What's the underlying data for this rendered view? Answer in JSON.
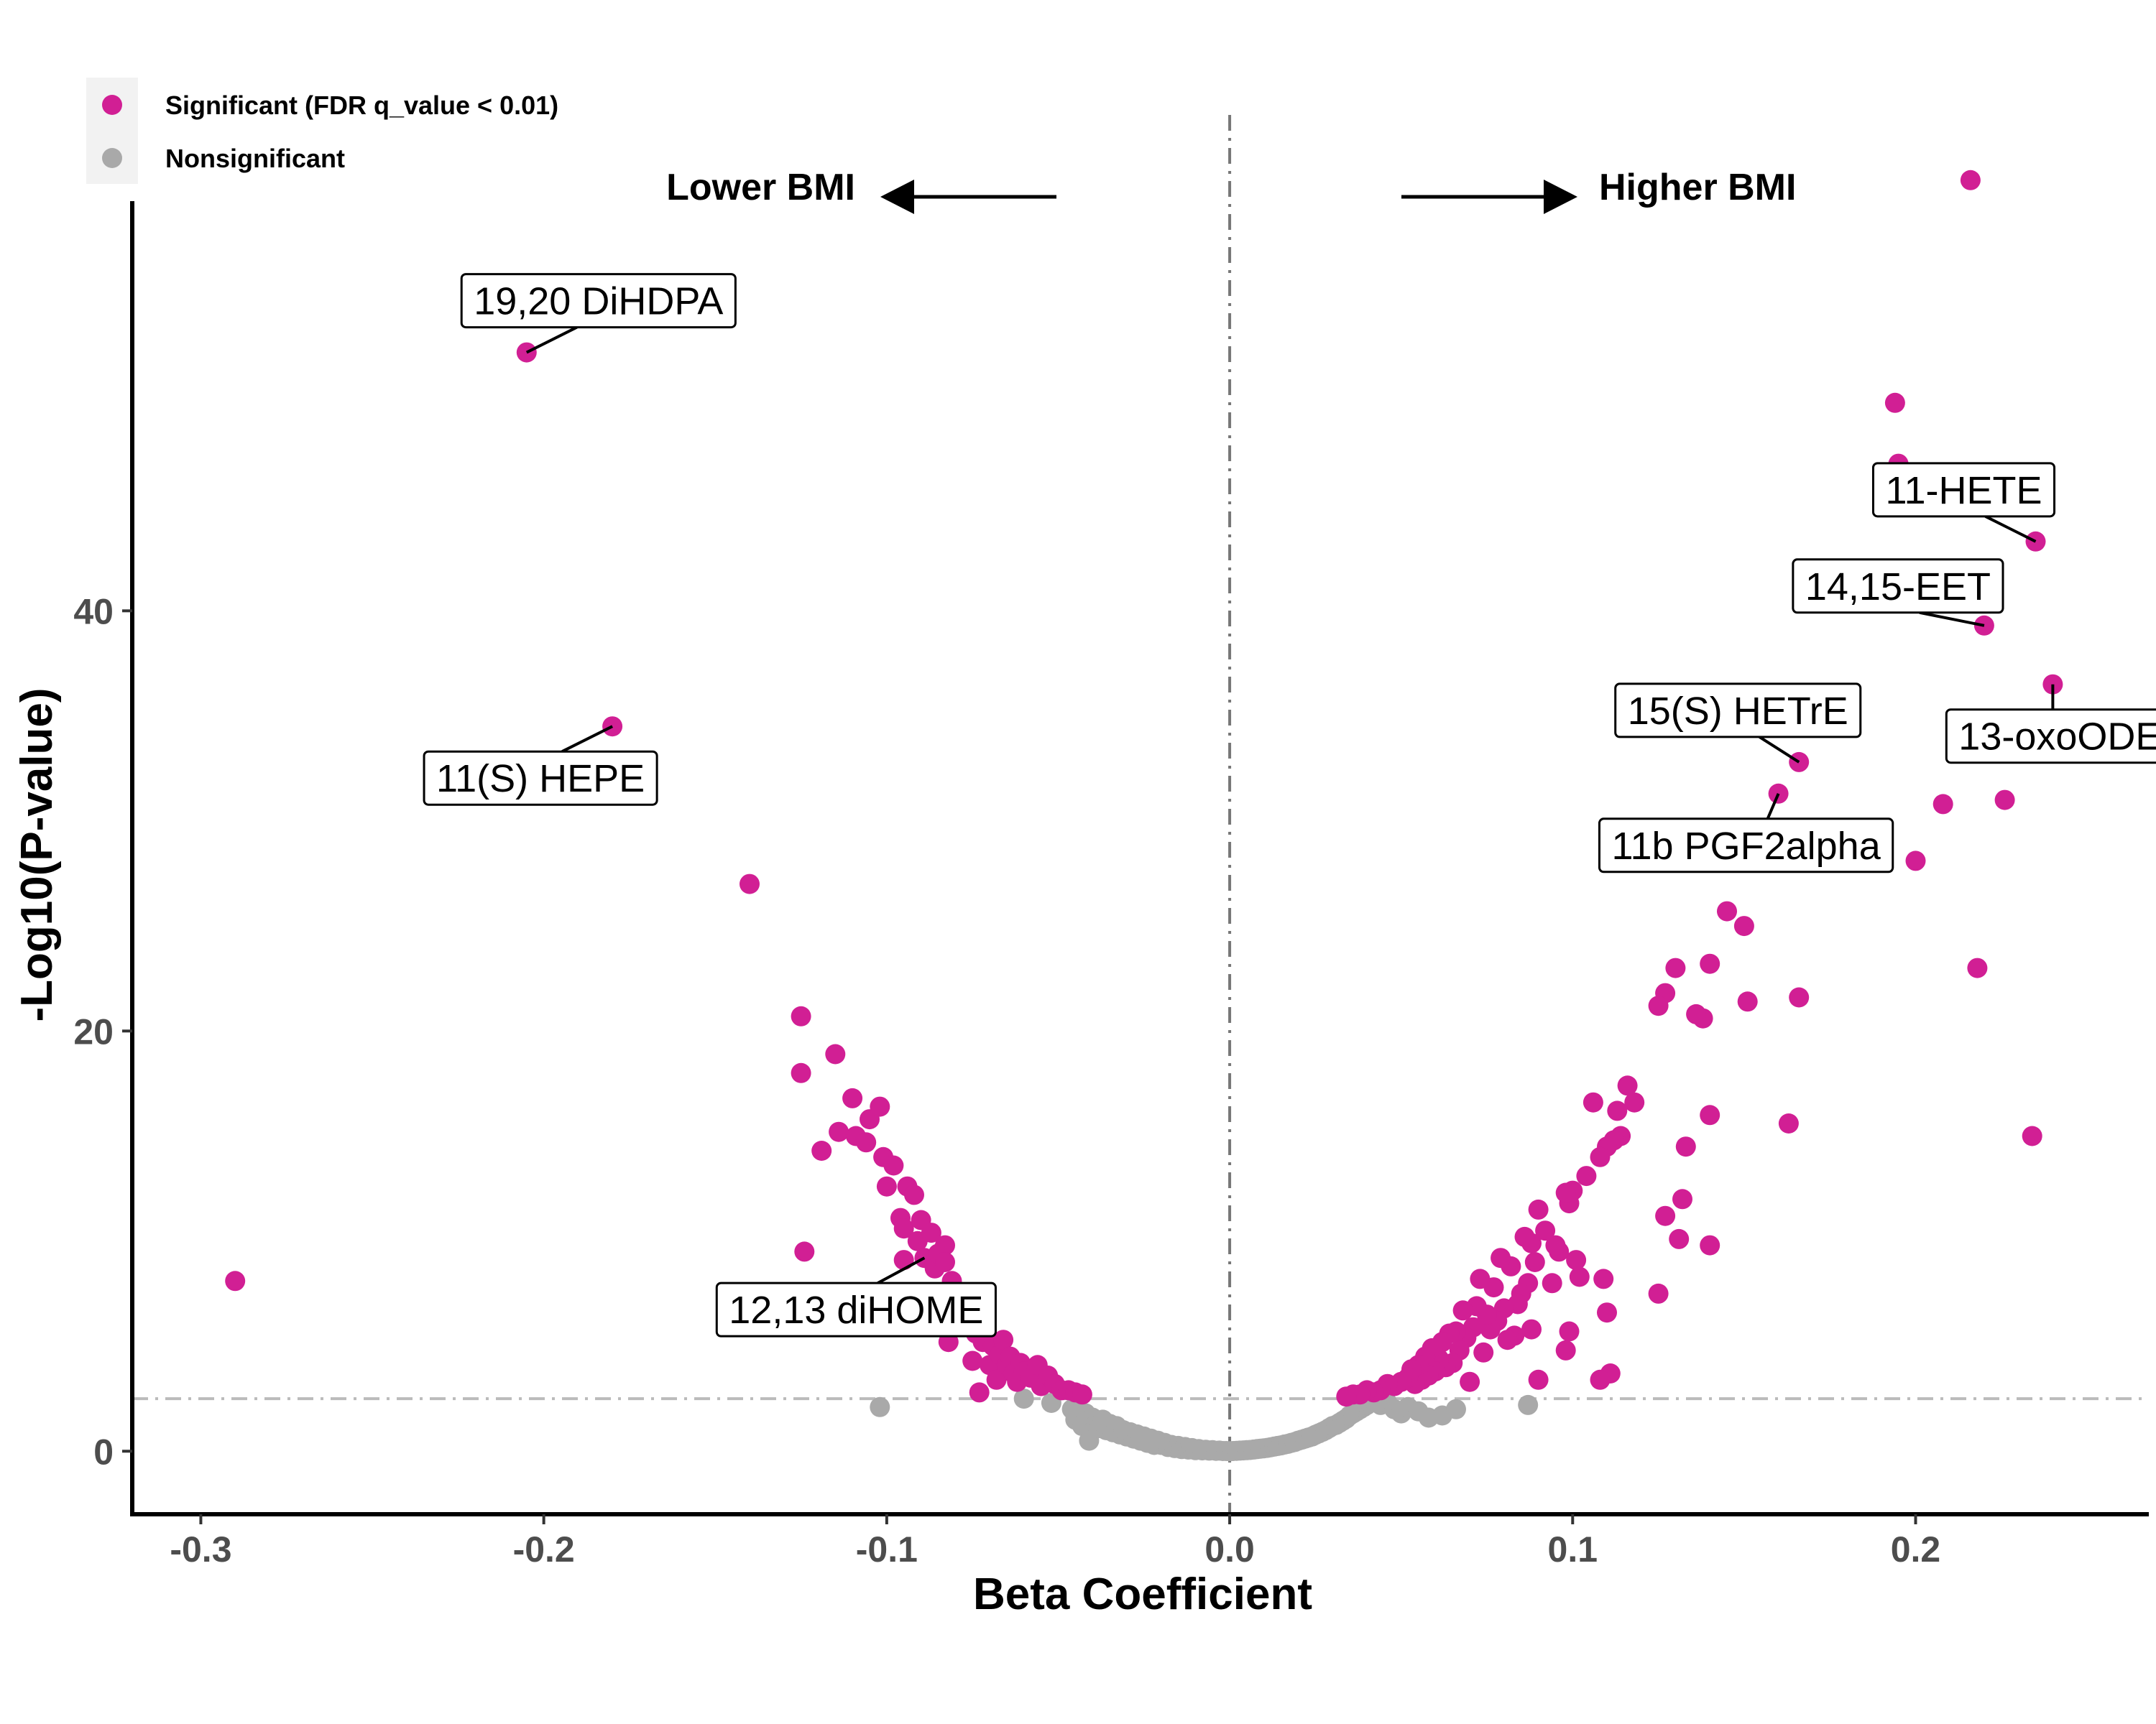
{
  "colors": {
    "significant": "#D11F94",
    "nonsignificant": "#A9A9A9",
    "threshold": "#BBBBBB",
    "zero_line": "#777777",
    "axis": "#000000",
    "legend_bg": "#F2F2F2"
  },
  "legend": {
    "items": [
      {
        "label": "Significant (FDR q_value < 0.01)",
        "color_key": "significant"
      },
      {
        "label": "Nonsignificant",
        "color_key": "nonsignificant"
      }
    ]
  },
  "direction": {
    "left": "Lower BMI",
    "right": "Higher BMI"
  },
  "chart_data": {
    "type": "scatter",
    "title": "",
    "xlabel": "Beta Coefficient",
    "ylabel": "-Log10(P-value)",
    "xlim": [
      -0.32,
      0.268
    ],
    "ylim": [
      -3,
      59.5
    ],
    "xticks": [
      -0.3,
      -0.2,
      -0.1,
      0.0,
      0.1,
      0.2
    ],
    "xtick_labels": [
      "-0.3",
      "-0.2",
      "-0.1",
      "0.0",
      "0.1",
      "0.2"
    ],
    "yticks": [
      0,
      20,
      40
    ],
    "ytick_labels": [
      "0",
      "20",
      "40"
    ],
    "threshold_y": 2.5,
    "zero_x": 0.0,
    "series": [
      {
        "name": "Significant (FDR q_value < 0.01)",
        "color_key": "significant",
        "points": [
          [
            -0.29,
            8.1
          ],
          [
            -0.205,
            52.3
          ],
          [
            -0.18,
            34.5
          ],
          [
            -0.14,
            27.0
          ],
          [
            -0.125,
            20.7
          ],
          [
            -0.125,
            18.0
          ],
          [
            -0.124,
            9.5
          ],
          [
            -0.119,
            14.3
          ],
          [
            -0.115,
            18.9
          ],
          [
            -0.114,
            15.2
          ],
          [
            -0.11,
            16.8
          ],
          [
            -0.109,
            15.0
          ],
          [
            -0.106,
            14.7
          ],
          [
            -0.105,
            15.8
          ],
          [
            -0.102,
            16.4
          ],
          [
            -0.101,
            14.0
          ],
          [
            -0.1,
            12.6
          ],
          [
            -0.098,
            13.6
          ],
          [
            -0.096,
            11.1
          ],
          [
            -0.095,
            10.6
          ],
          [
            -0.095,
            9.1
          ],
          [
            -0.094,
            12.6
          ],
          [
            -0.092,
            12.2
          ],
          [
            -0.091,
            10.0
          ],
          [
            -0.09,
            11.0
          ],
          [
            -0.089,
            9.2
          ],
          [
            -0.087,
            10.4
          ],
          [
            -0.086,
            8.7
          ],
          [
            -0.085,
            9.4
          ],
          [
            -0.084,
            7.1
          ],
          [
            -0.083,
            9.8
          ],
          [
            -0.083,
            9.0
          ],
          [
            -0.082,
            5.2
          ],
          [
            -0.081,
            8.1
          ],
          [
            -0.08,
            7.4
          ],
          [
            -0.079,
            6.6
          ],
          [
            -0.078,
            7.3
          ],
          [
            -0.077,
            6.0
          ],
          [
            -0.076,
            6.9
          ],
          [
            -0.075,
            4.3
          ],
          [
            -0.074,
            5.6
          ],
          [
            -0.073,
            2.8
          ],
          [
            -0.072,
            5.2
          ],
          [
            -0.07,
            4.1
          ],
          [
            -0.069,
            5.0
          ],
          [
            -0.068,
            3.4
          ],
          [
            -0.067,
            4.6
          ],
          [
            -0.066,
            5.3
          ],
          [
            -0.065,
            4.1
          ],
          [
            -0.064,
            4.5
          ],
          [
            -0.063,
            3.7
          ],
          [
            -0.062,
            3.3
          ],
          [
            -0.061,
            4.2
          ],
          [
            -0.06,
            3.8
          ],
          [
            -0.058,
            3.5
          ],
          [
            -0.056,
            4.1
          ],
          [
            -0.055,
            3.1
          ],
          [
            -0.053,
            3.6
          ],
          [
            -0.051,
            3.2
          ],
          [
            -0.049,
            2.9
          ],
          [
            -0.047,
            2.9
          ],
          [
            -0.045,
            2.8
          ],
          [
            -0.043,
            2.7
          ],
          [
            0.24,
            36.5
          ],
          [
            0.235,
            43.3
          ],
          [
            0.234,
            15.0
          ],
          [
            0.226,
            31.0
          ],
          [
            0.22,
            39.3
          ],
          [
            0.218,
            23.0
          ],
          [
            0.216,
            60.5
          ],
          [
            0.208,
            30.8
          ],
          [
            0.2,
            28.1
          ],
          [
            0.195,
            47.0
          ],
          [
            0.194,
            49.9
          ],
          [
            0.166,
            32.8
          ],
          [
            0.166,
            21.6
          ],
          [
            0.163,
            15.6
          ],
          [
            0.16,
            31.3
          ],
          [
            0.151,
            21.4
          ],
          [
            0.15,
            25.0
          ],
          [
            0.145,
            25.7
          ],
          [
            0.14,
            23.2
          ],
          [
            0.14,
            16.0
          ],
          [
            0.14,
            9.8
          ],
          [
            0.138,
            20.6
          ],
          [
            0.136,
            20.8
          ],
          [
            0.133,
            14.5
          ],
          [
            0.132,
            12.0
          ],
          [
            0.131,
            10.1
          ],
          [
            0.13,
            23.0
          ],
          [
            0.127,
            21.8
          ],
          [
            0.127,
            11.2
          ],
          [
            0.125,
            21.2
          ],
          [
            0.125,
            7.5
          ],
          [
            0.118,
            16.6
          ],
          [
            0.116,
            17.4
          ],
          [
            0.114,
            15.0
          ],
          [
            0.113,
            16.2
          ],
          [
            0.112,
            14.8
          ],
          [
            0.111,
            3.7
          ],
          [
            0.11,
            14.5
          ],
          [
            0.11,
            6.6
          ],
          [
            0.109,
            8.2
          ],
          [
            0.108,
            14.0
          ],
          [
            0.108,
            3.4
          ],
          [
            0.106,
            16.6
          ],
          [
            0.104,
            13.1
          ],
          [
            0.102,
            8.3
          ],
          [
            0.101,
            9.1
          ],
          [
            0.1,
            12.4
          ],
          [
            0.099,
            11.8
          ],
          [
            0.099,
            5.7
          ],
          [
            0.098,
            12.3
          ],
          [
            0.098,
            4.8
          ],
          [
            0.096,
            9.5
          ],
          [
            0.095,
            9.8
          ],
          [
            0.094,
            8.0
          ],
          [
            0.092,
            10.5
          ],
          [
            0.09,
            11.5
          ],
          [
            0.09,
            3.4
          ],
          [
            0.089,
            9.0
          ],
          [
            0.088,
            9.9
          ],
          [
            0.088,
            5.8
          ],
          [
            0.087,
            8.0
          ],
          [
            0.086,
            10.2
          ],
          [
            0.085,
            7.5
          ],
          [
            0.084,
            7.0
          ],
          [
            0.083,
            5.5
          ],
          [
            0.082,
            8.8
          ],
          [
            0.081,
            5.3
          ],
          [
            0.08,
            6.8
          ],
          [
            0.079,
            9.2
          ],
          [
            0.078,
            6.2
          ],
          [
            0.077,
            7.8
          ],
          [
            0.076,
            5.8
          ],
          [
            0.075,
            6.5
          ],
          [
            0.074,
            4.7
          ],
          [
            0.073,
            8.2
          ],
          [
            0.072,
            6.9
          ],
          [
            0.071,
            5.9
          ],
          [
            0.07,
            3.3
          ],
          [
            0.069,
            5.4
          ],
          [
            0.068,
            6.7
          ],
          [
            0.067,
            4.8
          ],
          [
            0.066,
            5.7
          ],
          [
            0.065,
            4.2
          ],
          [
            0.064,
            5.6
          ],
          [
            0.063,
            4.0
          ],
          [
            0.062,
            5.2
          ],
          [
            0.061,
            4.4
          ],
          [
            0.06,
            3.8
          ],
          [
            0.059,
            4.9
          ],
          [
            0.058,
            3.6
          ],
          [
            0.057,
            4.5
          ],
          [
            0.056,
            3.4
          ],
          [
            0.055,
            4.1
          ],
          [
            0.054,
            3.2
          ],
          [
            0.053,
            3.9
          ],
          [
            0.052,
            3.5
          ],
          [
            0.05,
            3.3
          ],
          [
            0.048,
            3.1
          ],
          [
            0.046,
            3.2
          ],
          [
            0.044,
            2.9
          ],
          [
            0.042,
            2.8
          ],
          [
            0.04,
            2.9
          ],
          [
            0.038,
            2.7
          ],
          [
            0.036,
            2.7
          ],
          [
            0.034,
            2.6
          ]
        ]
      },
      {
        "name": "Nonsignificant",
        "color_key": "nonsignificant",
        "points": [
          [
            -0.102,
            2.1
          ],
          [
            -0.06,
            2.5
          ],
          [
            -0.052,
            2.3
          ],
          [
            -0.046,
            2.0
          ],
          [
            -0.045,
            1.5
          ],
          [
            -0.044,
            1.9
          ],
          [
            -0.043,
            1.2
          ],
          [
            -0.042,
            1.8
          ],
          [
            -0.041,
            0.5
          ],
          [
            -0.04,
            1.6
          ],
          [
            -0.039,
            1.3
          ],
          [
            -0.038,
            1.1
          ],
          [
            -0.037,
            1.5
          ],
          [
            -0.036,
            1.0
          ],
          [
            -0.035,
            1.3
          ],
          [
            -0.034,
            0.9
          ],
          [
            -0.033,
            1.2
          ],
          [
            -0.032,
            0.8
          ],
          [
            -0.031,
            1.0
          ],
          [
            -0.03,
            0.7
          ],
          [
            -0.029,
            0.9
          ],
          [
            -0.028,
            0.6
          ],
          [
            -0.027,
            0.8
          ],
          [
            -0.026,
            0.5
          ],
          [
            -0.025,
            0.7
          ],
          [
            -0.024,
            0.4
          ],
          [
            -0.023,
            0.6
          ],
          [
            -0.022,
            0.3
          ],
          [
            -0.021,
            0.5
          ],
          [
            -0.02,
            0.3
          ],
          [
            -0.019,
            0.4
          ],
          [
            -0.018,
            0.2
          ],
          [
            -0.017,
            0.3
          ],
          [
            -0.016,
            0.15
          ],
          [
            -0.015,
            0.25
          ],
          [
            -0.014,
            0.1
          ],
          [
            -0.013,
            0.2
          ],
          [
            -0.012,
            0.08
          ],
          [
            -0.011,
            0.15
          ],
          [
            -0.01,
            0.05
          ],
          [
            -0.009,
            0.1
          ],
          [
            -0.008,
            0.04
          ],
          [
            -0.007,
            0.07
          ],
          [
            -0.006,
            0.03
          ],
          [
            -0.005,
            0.05
          ],
          [
            -0.004,
            0.02
          ],
          [
            -0.003,
            0.03
          ],
          [
            -0.002,
            0.01
          ],
          [
            -0.001,
            0.01
          ],
          [
            0.0,
            0.0
          ],
          [
            0.001,
            0.01
          ],
          [
            0.002,
            0.02
          ],
          [
            0.003,
            0.03
          ],
          [
            0.004,
            0.04
          ],
          [
            0.005,
            0.05
          ],
          [
            0.006,
            0.06
          ],
          [
            0.007,
            0.08
          ],
          [
            0.008,
            0.1
          ],
          [
            0.009,
            0.12
          ],
          [
            0.01,
            0.14
          ],
          [
            0.011,
            0.16
          ],
          [
            0.012,
            0.19
          ],
          [
            0.013,
            0.22
          ],
          [
            0.014,
            0.25
          ],
          [
            0.015,
            0.28
          ],
          [
            0.016,
            0.32
          ],
          [
            0.017,
            0.35
          ],
          [
            0.018,
            0.4
          ],
          [
            0.019,
            0.44
          ],
          [
            0.02,
            0.5
          ],
          [
            0.021,
            0.55
          ],
          [
            0.022,
            0.6
          ],
          [
            0.023,
            0.65
          ],
          [
            0.024,
            0.7
          ],
          [
            0.025,
            0.78
          ],
          [
            0.026,
            0.85
          ],
          [
            0.027,
            0.92
          ],
          [
            0.028,
            1.0
          ],
          [
            0.029,
            1.1
          ],
          [
            0.03,
            1.2
          ],
          [
            0.031,
            1.25
          ],
          [
            0.032,
            1.35
          ],
          [
            0.033,
            1.45
          ],
          [
            0.034,
            1.55
          ],
          [
            0.035,
            1.7
          ],
          [
            0.036,
            1.8
          ],
          [
            0.037,
            1.9
          ],
          [
            0.038,
            2.0
          ],
          [
            0.039,
            2.1
          ],
          [
            0.04,
            2.2
          ],
          [
            0.041,
            2.3
          ],
          [
            0.042,
            2.4
          ],
          [
            0.044,
            2.2
          ],
          [
            0.046,
            2.3
          ],
          [
            0.048,
            2.0
          ],
          [
            0.05,
            1.8
          ],
          [
            0.052,
            2.1
          ],
          [
            0.055,
            1.9
          ],
          [
            0.058,
            1.6
          ],
          [
            0.062,
            1.7
          ],
          [
            0.066,
            2.0
          ],
          [
            0.087,
            2.2
          ]
        ]
      }
    ],
    "annotations": [
      {
        "text": "19,20 DiHDPA",
        "x": -0.205,
        "y": 52.3
      },
      {
        "text": "11(S) HEPE",
        "x": -0.18,
        "y": 34.5
      },
      {
        "text": "12,13 diHOME",
        "x": -0.089,
        "y": 9.2
      },
      {
        "text": "11-HETE",
        "x": 0.235,
        "y": 43.3
      },
      {
        "text": "14,15-EET",
        "x": 0.22,
        "y": 39.3
      },
      {
        "text": "13-oxoODE",
        "x": 0.24,
        "y": 36.5
      },
      {
        "text": "15(S) HETrE",
        "x": 0.166,
        "y": 32.8
      },
      {
        "text": "11b PGF2alpha",
        "x": 0.16,
        "y": 31.3
      }
    ]
  }
}
